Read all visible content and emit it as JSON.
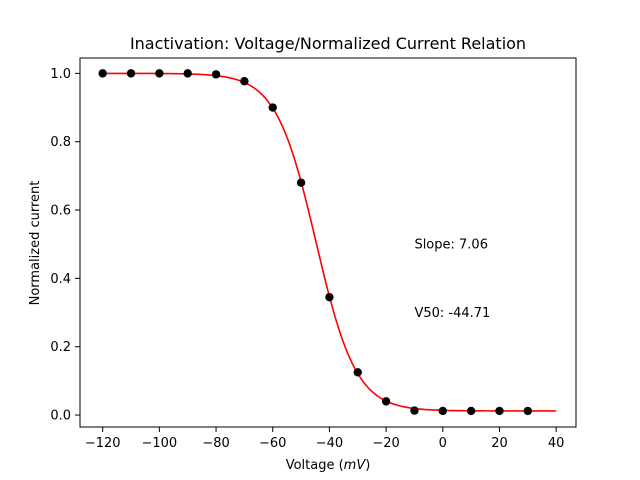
{
  "chart_data": {
    "type": "scatter",
    "title": "Inactivation: Voltage/Normalized Current Relation",
    "xlabel_prefix": "Voltage (",
    "xlabel_unit": "mV",
    "xlabel_suffix": ")",
    "ylabel": "Normalized current",
    "xlim": [
      -128,
      47
    ],
    "ylim": [
      -0.035,
      1.045
    ],
    "x_ticks": [
      -120,
      -100,
      -80,
      -60,
      -40,
      -20,
      0,
      20,
      40
    ],
    "x_tick_labels": [
      "−120",
      "−100",
      "−80",
      "−60",
      "−40",
      "−20",
      "0",
      "20",
      "40"
    ],
    "y_ticks": [
      0.0,
      0.2,
      0.4,
      0.6,
      0.8,
      1.0
    ],
    "y_tick_labels": [
      "0.0",
      "0.2",
      "0.4",
      "0.6",
      "0.8",
      "1.0"
    ],
    "grid": false,
    "series": [
      {
        "kind": "points",
        "color": "#000000",
        "x": [
          -120,
          -110,
          -100,
          -90,
          -80,
          -70,
          -60,
          -50,
          -40,
          -30,
          -20,
          -10,
          0,
          10,
          20,
          30
        ],
        "y": [
          1.0,
          1.0,
          1.0,
          1.0,
          0.997,
          0.977,
          0.9,
          0.68,
          0.345,
          0.125,
          0.04,
          0.013,
          0.012,
          0.012,
          0.012,
          0.012
        ]
      },
      {
        "kind": "fit_line",
        "color": "#ff0000",
        "model": "boltzmann",
        "v50": -44.71,
        "slope": 7.06,
        "bottom": 0.012,
        "top": 1.0,
        "x_range": [
          -120,
          40
        ]
      }
    ],
    "annotations": [
      {
        "text": "Slope: 7.06",
        "x": -10,
        "y": 0.5
      },
      {
        "text": "V50: -44.71",
        "x": -10,
        "y": 0.3
      }
    ]
  }
}
